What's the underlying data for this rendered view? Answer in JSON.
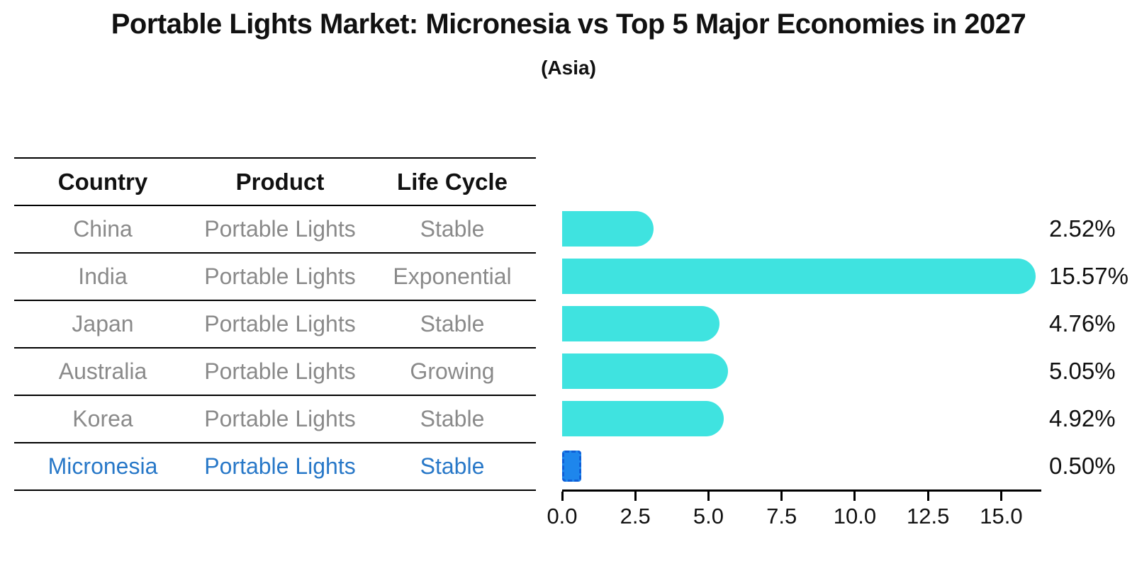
{
  "title": "Portable Lights Market: Micronesia vs Top 5 Major Economies in 2027",
  "subtitle": "(Asia)",
  "table": {
    "headers": [
      "Country",
      "Product",
      "Life Cycle"
    ],
    "rows": [
      {
        "country": "China",
        "product": "Portable Lights",
        "life_cycle": "Stable",
        "highlight": false
      },
      {
        "country": "India",
        "product": "Portable Lights",
        "life_cycle": "Exponential",
        "highlight": false
      },
      {
        "country": "Japan",
        "product": "Portable Lights",
        "life_cycle": "Stable",
        "highlight": false
      },
      {
        "country": "Australia",
        "product": "Portable Lights",
        "life_cycle": "Growing",
        "highlight": false
      },
      {
        "country": "Korea",
        "product": "Portable Lights",
        "life_cycle": "Stable",
        "highlight": false
      },
      {
        "country": "Micronesia",
        "product": "Portable Lights",
        "life_cycle": "Stable",
        "highlight": true
      }
    ]
  },
  "chart_data": {
    "type": "bar",
    "orientation": "horizontal",
    "title": "Portable Lights Market: Micronesia vs Top 5 Major Economies in 2027",
    "subtitle": "(Asia)",
    "categories": [
      "China",
      "India",
      "Japan",
      "Australia",
      "Korea",
      "Micronesia"
    ],
    "values": [
      2.52,
      15.57,
      4.76,
      5.05,
      4.92,
      0.5
    ],
    "value_labels": [
      "2.52%",
      "15.57%",
      "4.76%",
      "5.05%",
      "4.92%",
      "0.50%"
    ],
    "x_ticks": [
      0.0,
      2.5,
      5.0,
      7.5,
      10.0,
      12.5,
      15.0
    ],
    "x_tick_labels": [
      "0.0",
      "2.5",
      "5.0",
      "7.5",
      "10.0",
      "12.5",
      "15.0"
    ],
    "xlim": [
      0,
      16.37
    ],
    "grid": false,
    "legend": false,
    "bar_color": "#3fe3e0",
    "highlight_index": 5,
    "highlight_color": "#1e86ec",
    "highlight_border": "#0f5fd7"
  },
  "colors": {
    "highlight_text": "#2878c8",
    "body_text": "#8a8a8a",
    "title_text": "#111111"
  }
}
